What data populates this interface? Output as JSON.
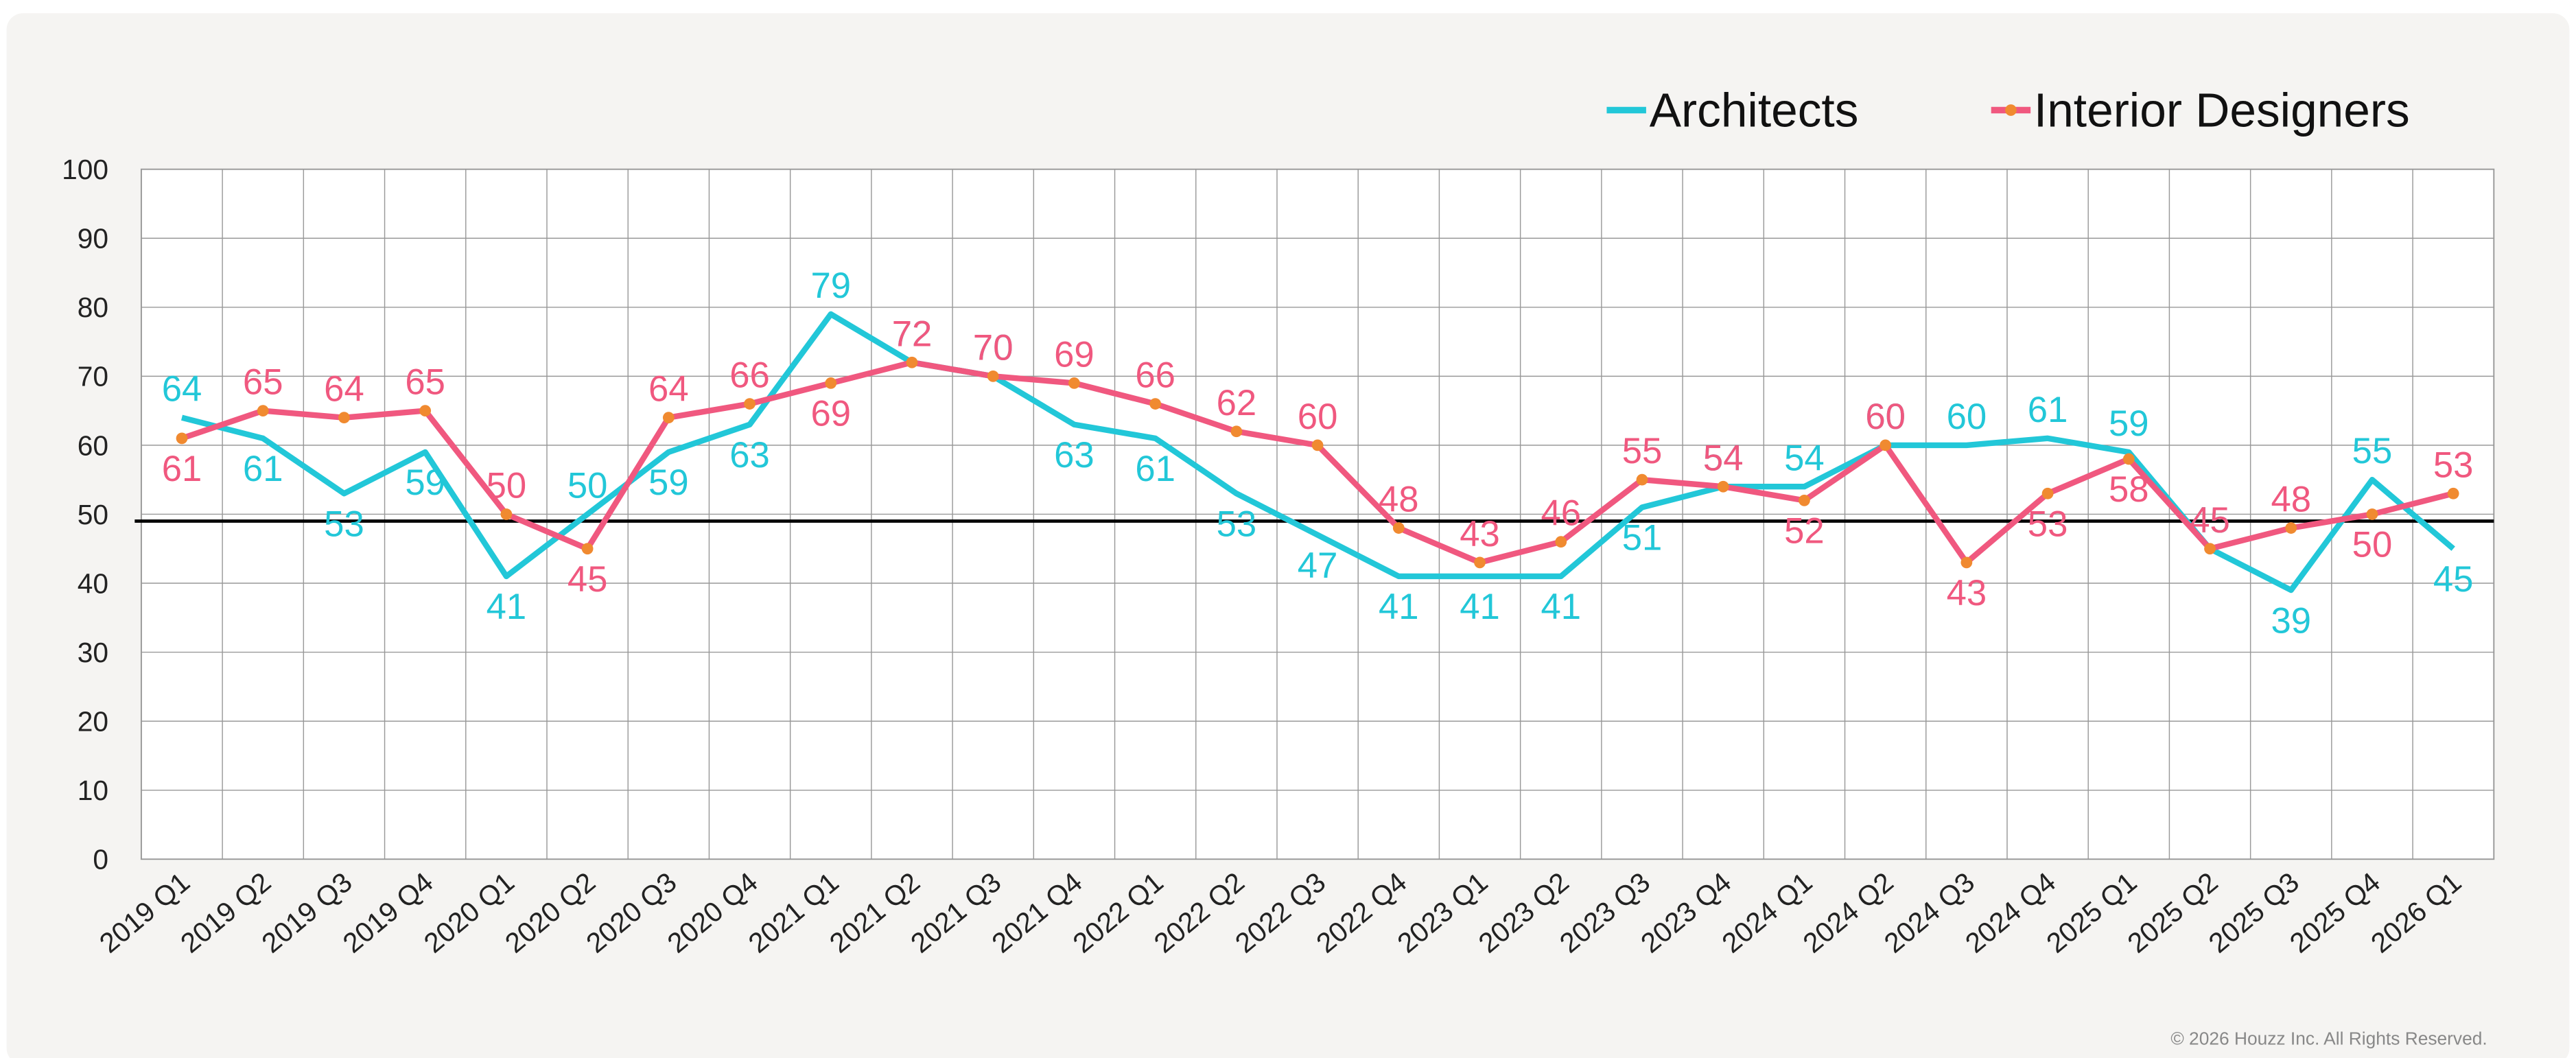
{
  "chart_data": {
    "type": "line",
    "categories": [
      "2019 Q1",
      "2019 Q2",
      "2019 Q3",
      "2019 Q4",
      "2020 Q1",
      "2020 Q2",
      "2020 Q3",
      "2020 Q4",
      "2021 Q1",
      "2021 Q2",
      "2021 Q3",
      "2021 Q4",
      "2022 Q1",
      "2022 Q2",
      "2022 Q3",
      "2022 Q4",
      "2023 Q1",
      "2023 Q2",
      "2023 Q3",
      "2023 Q4",
      "2024 Q1",
      "2024 Q2",
      "2024 Q3",
      "2024 Q4",
      "2025 Q1",
      "2025 Q2",
      "2025 Q3",
      "2025 Q4",
      "2026 Q1"
    ],
    "series": [
      {
        "name": "Architects",
        "color": "#22c7d8",
        "values": [
          64,
          61,
          53,
          59,
          41,
          50,
          59,
          63,
          79,
          72,
          70,
          63,
          61,
          53,
          47,
          41,
          41,
          41,
          51,
          54,
          54,
          60,
          60,
          61,
          59,
          45,
          39,
          55,
          45
        ]
      },
      {
        "name": "Interior Designers",
        "color": "#f0587f",
        "marker_color": "#f08a30",
        "values": [
          61,
          65,
          64,
          65,
          50,
          45,
          64,
          66,
          69,
          72,
          70,
          69,
          66,
          62,
          60,
          48,
          43,
          46,
          55,
          54,
          52,
          60,
          43,
          53,
          58,
          45,
          48,
          50,
          53
        ]
      }
    ],
    "ylim": [
      0,
      100
    ],
    "yticks": [
      0,
      10,
      20,
      30,
      40,
      50,
      60,
      70,
      80,
      90,
      100
    ],
    "grid": true,
    "legend": "top-right",
    "reference_line": 49,
    "footer": "© 2026 Houzz Inc. All Rights Reserved."
  }
}
